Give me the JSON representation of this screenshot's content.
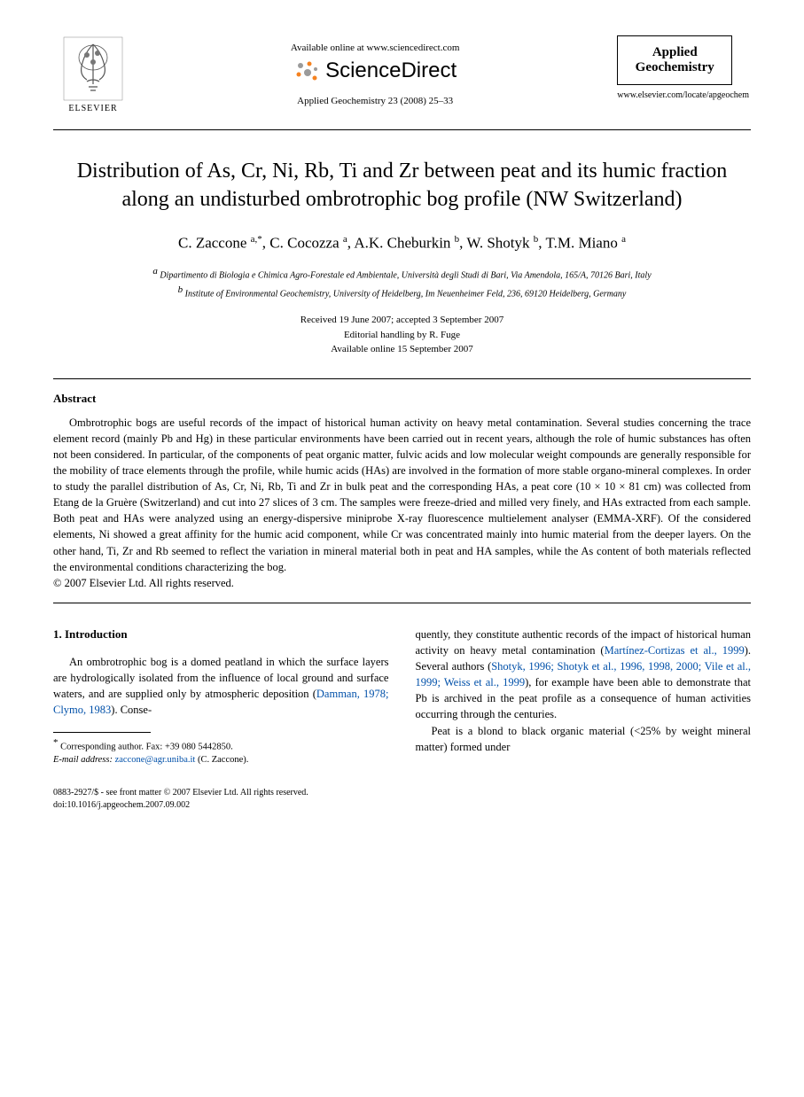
{
  "header": {
    "elsevier_label": "ELSEVIER",
    "available_online": "Available online at www.sciencedirect.com",
    "sciencedirect": "ScienceDirect",
    "journal_ref": "Applied Geochemistry 23 (2008) 25–33",
    "journal_box_line1": "Applied",
    "journal_box_line2": "Geochemistry",
    "journal_url": "www.elsevier.com/locate/apgeochem"
  },
  "title": "Distribution of As, Cr, Ni, Rb, Ti and Zr between peat and its humic fraction along an undisturbed ombrotrophic bog profile (NW Switzerland)",
  "authors_html": "C. Zaccone <span class='sup'>a,*</span>, C. Cocozza <span class='sup'>a</span>, A.K. Cheburkin <span class='sup'>b</span>, W. Shotyk <span class='sup'>b</span>, T.M. Miano <span class='sup'>a</span>",
  "affiliations": {
    "a": "Dipartimento di Biologia e Chimica Agro-Forestale ed Ambientale, Università degli Studi di Bari, Via Amendola, 165/A, 70126 Bari, Italy",
    "b": "Institute of Environmental Geochemistry, University of Heidelberg, Im Neuenheimer Feld, 236, 69120 Heidelberg, Germany"
  },
  "dates": {
    "received_accepted": "Received 19 June 2007; accepted 3 September 2007",
    "editorial": "Editorial handling by R. Fuge",
    "online": "Available online 15 September 2007"
  },
  "abstract": {
    "heading": "Abstract",
    "text": "Ombrotrophic bogs are useful records of the impact of historical human activity on heavy metal contamination. Several studies concerning the trace element record (mainly Pb and Hg) in these particular environments have been carried out in recent years, although the role of humic substances has often not been considered. In particular, of the components of peat organic matter, fulvic acids and low molecular weight compounds are generally responsible for the mobility of trace elements through the profile, while humic acids (HAs) are involved in the formation of more stable organo-mineral complexes. In order to study the parallel distribution of As, Cr, Ni, Rb, Ti and Zr in bulk peat and the corresponding HAs, a peat core (10 × 10 × 81 cm) was collected from Etang de la Gruère (Switzerland) and cut into 27 slices of 3 cm. The samples were freeze-dried and milled very finely, and HAs extracted from each sample. Both peat and HAs were analyzed using an energy-dispersive miniprobe X-ray fluorescence multielement analyser (EMMA-XRF). Of the considered elements, Ni showed a great affinity for the humic acid component, while Cr was concentrated mainly into humic material from the deeper layers. On the other hand, Ti, Zr and Rb seemed to reflect the variation in mineral material both in peat and HA samples, while the As content of both materials reflected the environmental conditions characterizing the bog.",
    "copyright": "© 2007 Elsevier Ltd. All rights reserved."
  },
  "section1": {
    "heading": "1. Introduction",
    "left_para": "An ombrotrophic bog is a domed peatland in which the surface layers are hydrologically isolated from the influence of local ground and surface waters, and are supplied only by atmospheric deposition (",
    "left_cite": "Damman, 1978; Clymo, 1983",
    "left_tail": "). Conse-",
    "right_head": "quently, they constitute authentic records of the impact of historical human activity on heavy metal contamination (",
    "right_cite1": "Martínez-Cortizas et al., 1999",
    "right_mid": "). Several authors (",
    "right_cite2": "Shotyk, 1996; Shotyk et al., 1996, 1998, 2000; Vile et al., 1999; Weiss et al., 1999",
    "right_tail": "), for example have been able to demonstrate that Pb is archived in the peat profile as a consequence of human activities occurring through the centuries.",
    "right_para2": "Peat is a blond to black organic material (<25% by weight mineral matter) formed under"
  },
  "footnote": {
    "corresponding": "Corresponding author. Fax: +39 080 5442850.",
    "email_label": "E-mail address:",
    "email": "zaccone@agr.uniba.it",
    "email_tail": "(C. Zaccone)."
  },
  "footer": {
    "line1": "0883-2927/$ - see front matter © 2007 Elsevier Ltd. All rights reserved.",
    "line2": "doi:10.1016/j.apgeochem.2007.09.002"
  },
  "colors": {
    "citation": "#0050a9",
    "sd_orange": "#f58220",
    "sd_grey": "#9b9b9b"
  }
}
